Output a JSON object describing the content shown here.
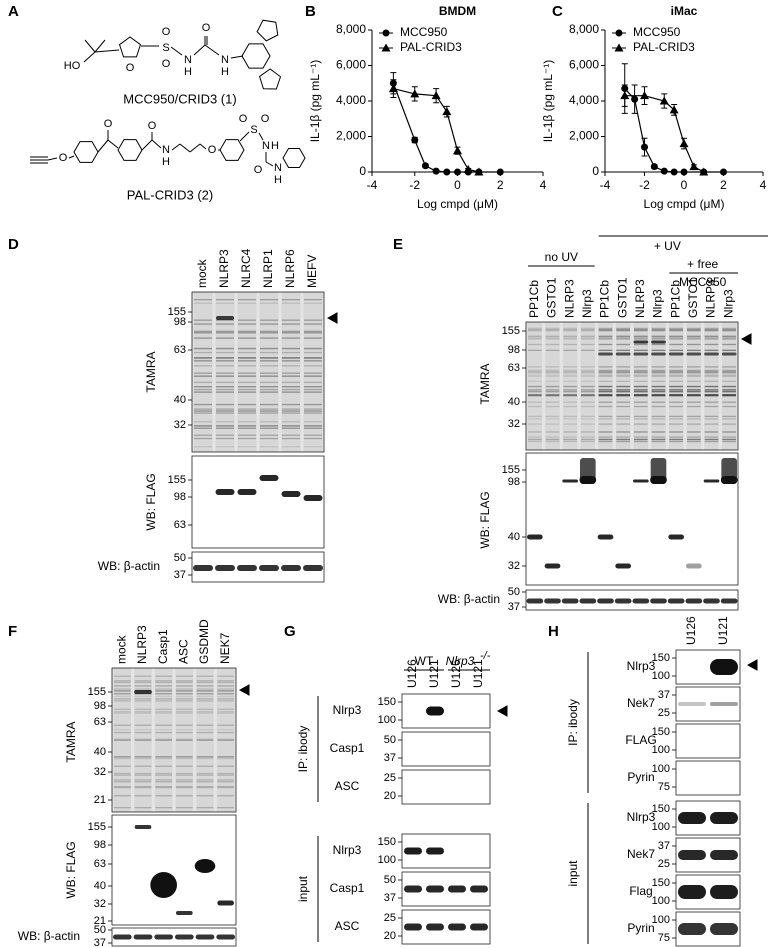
{
  "panel_labels": [
    "A",
    "B",
    "C",
    "D",
    "E",
    "F",
    "G",
    "H"
  ],
  "panels": {
    "A": {
      "compounds": [
        "MCC950/CRID3 (1)",
        "PAL-CRID3 (2)"
      ],
      "atoms_1": [
        "HO",
        "O",
        "S",
        "O",
        "O",
        "N",
        "H",
        "O",
        "N",
        "H"
      ],
      "atoms_2": [
        "O",
        "O",
        "O",
        "N",
        "H",
        "O",
        "S",
        "O",
        "O",
        "N",
        "H",
        "O",
        "N",
        "H"
      ]
    },
    "D": {
      "lanes": [
        "mock",
        "NLRP3",
        "NLRC4",
        "NLRP1",
        "NLRP6",
        "MEFV"
      ],
      "blots": [
        {
          "name": "TAMRA",
          "markers": [
            155,
            98,
            63,
            40,
            32
          ]
        },
        {
          "name": "WB: FLAG",
          "markers": [
            155,
            98,
            63
          ]
        },
        {
          "name": "WB: β-actin",
          "markers": [
            50,
            37
          ]
        }
      ]
    },
    "E": {
      "lanes": [
        "PP1Cb",
        "GSTO1",
        "NLRP3",
        "Nlrp3",
        "PP1Cb",
        "GSTO1",
        "NLRP3",
        "Nlrp3",
        "PP1Cb",
        "GSTO1",
        "NLRP3",
        "Nlrp3"
      ],
      "groups": [
        "no UV",
        "+ UV",
        "+ free",
        "MCC950"
      ],
      "blots": [
        {
          "name": "TAMRA",
          "markers": [
            155,
            98,
            63,
            40,
            32
          ]
        },
        {
          "name": "WB: FLAG",
          "markers": [
            155,
            98,
            40,
            32
          ]
        },
        {
          "name": "WB: β-actin",
          "markers": [
            50,
            37
          ]
        }
      ]
    },
    "F": {
      "lanes": [
        "mock",
        "NLRP3",
        "Casp1",
        "ASC",
        "GSDMD",
        "NEK7"
      ],
      "blots": [
        {
          "name": "TAMRA",
          "markers": [
            155,
            98,
            63,
            40,
            32,
            21
          ]
        },
        {
          "name": "WB: FLAG",
          "markers": [
            155,
            98,
            63,
            40,
            32,
            21
          ]
        },
        {
          "name": "WB: β-actin",
          "markers": [
            50,
            37
          ]
        }
      ]
    },
    "G": {
      "genotypes": [
        {
          "gene": "WT"
        },
        {
          "gene": "Nlrp3",
          "superscript": "-/-"
        }
      ],
      "lanes": [
        "U126",
        "U121",
        "U126",
        "U121"
      ],
      "sections": [
        {
          "name": "IP: ibody",
          "rows": [
            {
              "name": "Nlrp3",
              "markers": [
                150,
                100
              ]
            },
            {
              "name": "Casp1",
              "markers": [
                50,
                37
              ]
            },
            {
              "name": "ASC",
              "markers": [
                25,
                20
              ]
            }
          ]
        },
        {
          "name": "input",
          "rows": [
            {
              "name": "Nlrp3",
              "markers": [
                150,
                100
              ]
            },
            {
              "name": "Casp1",
              "markers": [
                50,
                37
              ]
            },
            {
              "name": "ASC",
              "markers": [
                25,
                20
              ]
            }
          ]
        }
      ]
    },
    "H": {
      "lanes": [
        "U126",
        "U121"
      ],
      "sections": [
        {
          "name": "IP: ibody",
          "rows": [
            {
              "name": "Nlrp3",
              "markers": [
                150,
                100
              ]
            },
            {
              "name": "Nek7",
              "markers": [
                37,
                25
              ]
            },
            {
              "name": "FLAG",
              "markers": [
                150,
                100
              ]
            },
            {
              "name": "Pyrin",
              "markers": [
                100,
                75
              ]
            }
          ]
        },
        {
          "name": "input",
          "rows": [
            {
              "name": "Nlrp3",
              "markers": [
                150,
                100
              ]
            },
            {
              "name": "Nek7",
              "markers": [
                37,
                25
              ]
            },
            {
              "name": "Flag",
              "markers": [
                150,
                100
              ]
            },
            {
              "name": "Pyrin",
              "markers": [
                100,
                75
              ]
            }
          ]
        }
      ]
    }
  },
  "chart_data": [
    {
      "type": "line",
      "title": "BMDM",
      "xlabel": "Log cmpd (μM)",
      "ylabel": "IL-1β (pg mL⁻¹)",
      "xlim": [
        -4,
        4
      ],
      "xticks": [
        -4,
        -2,
        0,
        2,
        4
      ],
      "ylim": [
        0,
        8000
      ],
      "yticks": [
        0,
        {
          "value": 2000,
          "label": "2,000"
        },
        {
          "value": 4000,
          "label": "4,000"
        },
        {
          "value": 6000,
          "label": "6,000"
        },
        {
          "value": 8000,
          "label": "8,000"
        }
      ],
      "legend": "top-left",
      "series": [
        {
          "name": "MCC950",
          "marker": "circle",
          "color": "#000000",
          "x": [
            -3,
            -2,
            -1.5,
            -1,
            -0.5,
            0,
            0.5,
            1,
            2
          ],
          "values": [
            5000,
            1800,
            350,
            50,
            0,
            0,
            0,
            0,
            0
          ],
          "errors": [
            600,
            150,
            100,
            0,
            0,
            0,
            0,
            0,
            0
          ]
        },
        {
          "name": "PAL-CRID3",
          "marker": "triangle",
          "color": "#000000",
          "x": [
            -3,
            -2,
            -1,
            -0.5,
            0,
            0.5,
            1
          ],
          "values": [
            4700,
            4400,
            4300,
            3400,
            1200,
            150,
            0
          ],
          "errors": [
            500,
            400,
            400,
            300,
            200,
            50,
            0
          ]
        }
      ]
    },
    {
      "type": "line",
      "title": "iMac",
      "xlabel": "Log cmpd (μM)",
      "ylabel": "IL-1β (pg mL⁻¹)",
      "xlim": [
        -4,
        4
      ],
      "xticks": [
        -4,
        -2,
        0,
        2,
        4
      ],
      "ylim": [
        0,
        8000
      ],
      "yticks": [
        0,
        {
          "value": 2000,
          "label": "2,000"
        },
        {
          "value": 4000,
          "label": "4,000"
        },
        {
          "value": 6000,
          "label": "6,000"
        },
        {
          "value": 8000,
          "label": "8,000"
        }
      ],
      "legend": "top-left",
      "series": [
        {
          "name": "MCC950",
          "marker": "circle",
          "color": "#000000",
          "x": [
            -3,
            -2.5,
            -2,
            -1.5,
            -1,
            -0.5,
            0,
            1,
            2
          ],
          "values": [
            4700,
            4100,
            1400,
            300,
            50,
            0,
            0,
            0,
            0
          ],
          "errors": [
            1400,
            800,
            500,
            100,
            0,
            0,
            0,
            0,
            0
          ]
        },
        {
          "name": "PAL-CRID3",
          "marker": "triangle",
          "color": "#000000",
          "x": [
            -3,
            -2,
            -1,
            -0.5,
            0,
            0.5,
            1
          ],
          "values": [
            4300,
            4300,
            4000,
            3500,
            1600,
            300,
            0
          ],
          "errors": [
            600,
            500,
            400,
            300,
            300,
            100,
            0
          ]
        }
      ]
    }
  ]
}
